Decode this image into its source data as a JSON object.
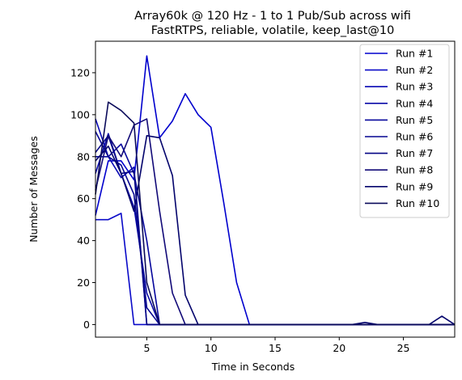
{
  "chart_data": {
    "type": "line",
    "title": "Array60k @ 120 Hz - 1 to 1 Pub/Sub across wifi",
    "subtitle": "FastRTPS, reliable, volatile, keep_last@10",
    "xlabel": "Time in Seconds",
    "ylabel": "Number of Messages",
    "xlim": [
      1,
      29
    ],
    "ylim": [
      -6,
      135
    ],
    "xticks": [
      5,
      10,
      15,
      20,
      25
    ],
    "yticks": [
      0,
      20,
      40,
      60,
      80,
      100,
      120
    ],
    "legend_position": "upper-right",
    "grid": false,
    "x": [
      1,
      2,
      3,
      4,
      5,
      6,
      7,
      8,
      9,
      10,
      11,
      12,
      13,
      14,
      15,
      16,
      17,
      18,
      19,
      20,
      21,
      22,
      23,
      24,
      25,
      26,
      27,
      28,
      29
    ],
    "series": [
      {
        "name": "Run #1",
        "color": "#0000cd",
        "values": [
          52,
          78,
          78,
          69,
          128,
          89,
          97,
          110,
          100,
          94,
          58,
          20,
          0,
          0,
          0,
          0,
          0,
          0,
          0,
          0,
          0,
          0,
          0,
          0,
          0,
          0,
          0,
          0,
          0
        ]
      },
      {
        "name": "Run #2",
        "color": "#0a0ac8",
        "values": [
          50,
          50,
          53,
          0,
          0,
          0,
          0,
          0,
          0,
          0,
          0,
          0,
          0,
          0,
          0,
          0,
          0,
          0,
          0,
          0,
          0,
          0,
          0,
          0,
          0,
          0,
          0,
          0,
          0
        ]
      },
      {
        "name": "Run #3",
        "color": "#0808b4",
        "values": [
          98,
          80,
          70,
          75,
          0,
          0,
          0,
          0,
          0,
          0,
          0,
          0,
          0,
          0,
          0,
          0,
          0,
          0,
          0,
          0,
          0,
          0,
          0,
          0,
          0,
          0,
          0,
          0,
          0
        ]
      },
      {
        "name": "Run #4",
        "color": "#0a0aa8",
        "values": [
          72,
          91,
          72,
          56,
          15,
          0,
          0,
          0,
          0,
          0,
          0,
          0,
          0,
          0,
          0,
          0,
          0,
          0,
          0,
          0,
          0,
          0,
          0,
          0,
          0,
          0,
          0,
          0,
          0
        ]
      },
      {
        "name": "Run #5",
        "color": "#06069c",
        "values": [
          80,
          80,
          86,
          72,
          40,
          0,
          0,
          0,
          0,
          0,
          0,
          0,
          0,
          0,
          0,
          0,
          0,
          0,
          0,
          0,
          0,
          0,
          0,
          0,
          0,
          0,
          0,
          0,
          0
        ]
      },
      {
        "name": "Run #6",
        "color": "#050590",
        "values": [
          92,
          80,
          76,
          62,
          8,
          0,
          0,
          0,
          0,
          0,
          0,
          0,
          0,
          0,
          0,
          0,
          0,
          0,
          0,
          0,
          0,
          0,
          0,
          0,
          0,
          0,
          0,
          0,
          0
        ]
      },
      {
        "name": "Run #7",
        "color": "#040484",
        "values": [
          82,
          90,
          72,
          73,
          0,
          0,
          0,
          0,
          0,
          0,
          0,
          0,
          0,
          0,
          0,
          0,
          0,
          0,
          0,
          0,
          0,
          0,
          0,
          0,
          0,
          0,
          0,
          0,
          0
        ]
      },
      {
        "name": "Run #8",
        "color": "#120a78",
        "values": [
          64,
          90,
          80,
          95,
          98,
          54,
          15,
          0,
          0,
          0,
          0,
          0,
          0,
          0,
          0,
          0,
          0,
          0,
          0,
          0,
          0,
          0,
          0,
          0,
          0,
          0,
          0,
          0,
          0
        ]
      },
      {
        "name": "Run #9",
        "color": "#04046c",
        "values": [
          78,
          85,
          72,
          54,
          90,
          89,
          71,
          14,
          0,
          0,
          0,
          0,
          0,
          0,
          0,
          0,
          0,
          0,
          0,
          0,
          0,
          1,
          0,
          0,
          0,
          0,
          0,
          4,
          0
        ]
      },
      {
        "name": "Run #10",
        "color": "#0a0a5a",
        "values": [
          62,
          106,
          102,
          96,
          20,
          0,
          0,
          0,
          0,
          0,
          0,
          0,
          0,
          0,
          0,
          0,
          0,
          0,
          0,
          0,
          0,
          0,
          0,
          0,
          0,
          0,
          0,
          0,
          0
        ]
      }
    ]
  }
}
